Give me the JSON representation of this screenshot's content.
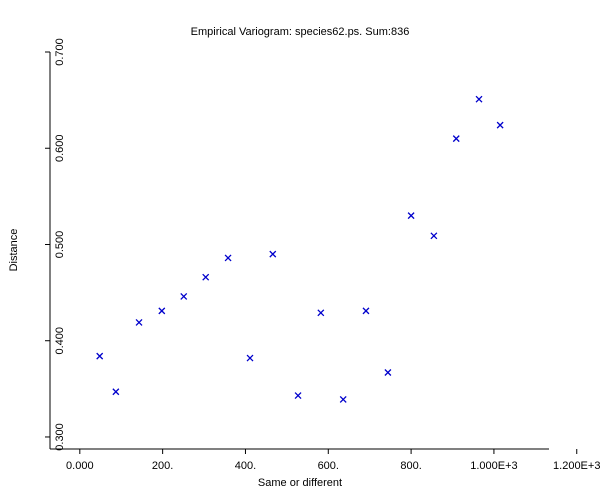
{
  "chart_data": {
    "type": "scatter",
    "title": "Empirical Variogram: species62.ps. Sum:836",
    "x_label": "Same or different",
    "y_label": "Distance",
    "color": "#0000cc",
    "series": [
      {
        "x": [
          48,
          87,
          143,
          198,
          251,
          304,
          358,
          411,
          466,
          527,
          582,
          636,
          691,
          744,
          800,
          855,
          909,
          964,
          1015
        ],
        "values": [
          0.384,
          0.347,
          0.419,
          0.431,
          0.446,
          0.466,
          0.486,
          0.382,
          0.49,
          0.343,
          0.429,
          0.339,
          0.431,
          0.367,
          0.53,
          0.509,
          0.61,
          0.651,
          0.624
        ]
      }
    ],
    "xlim": [
      -72,
      1133
    ],
    "ylim": [
      0.2875,
      0.7
    ],
    "xticks": [
      {
        "value": 0,
        "label": "0.000"
      },
      {
        "value": 200,
        "label": "200."
      },
      {
        "value": 400,
        "label": "400."
      },
      {
        "value": 600,
        "label": "600."
      },
      {
        "value": 800,
        "label": "800."
      },
      {
        "value": 1000,
        "label": "1.000E+3"
      },
      {
        "value": 1200,
        "label": "1.200E+3"
      }
    ],
    "yticks": [
      {
        "value": 0.3,
        "label": "0.300"
      },
      {
        "value": 0.4,
        "label": "0.400"
      },
      {
        "value": 0.5,
        "label": "0.500"
      },
      {
        "value": 0.6,
        "label": "0.600"
      },
      {
        "value": 0.7,
        "label": "0.700"
      }
    ]
  }
}
